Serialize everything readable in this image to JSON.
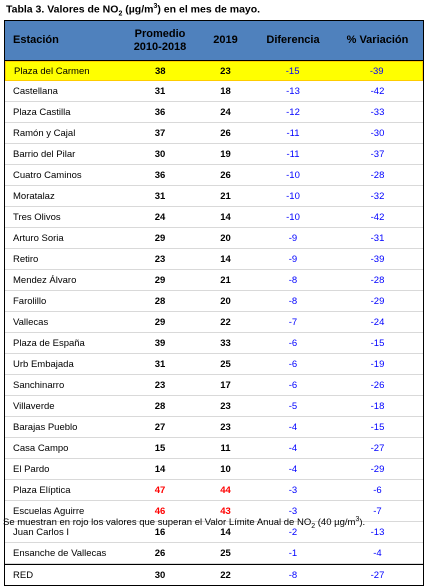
{
  "title": {
    "pre": "Tabla 3. Valores de NO",
    "sub": "2",
    "mid": " (µg/m",
    "sup": "3",
    "post": ") en el mes de mayo."
  },
  "headers": {
    "station": "Estación",
    "avg_line1": "Promedio",
    "avg_line2": "2010-2018",
    "year": "2019",
    "diff": "Diferencia",
    "var": "% Variación"
  },
  "colors": {
    "header_bg": "#4f81bd",
    "highlight": "#ffff00",
    "exceed": "#ff0000",
    "diff_text": "#0000ff"
  },
  "rows": [
    {
      "station": "Plaza del Carmen",
      "avg": "38",
      "y2019": "23",
      "diff": "-15",
      "var": "-39",
      "highlight": true
    },
    {
      "station": "Castellana",
      "avg": "31",
      "y2019": "18",
      "diff": "-13",
      "var": "-42"
    },
    {
      "station": "Plaza Castilla",
      "avg": "36",
      "y2019": "24",
      "diff": "-12",
      "var": "-33"
    },
    {
      "station": "Ramón y Cajal",
      "avg": "37",
      "y2019": "26",
      "diff": "-11",
      "var": "-30"
    },
    {
      "station": "Barrio del Pilar",
      "avg": "30",
      "y2019": "19",
      "diff": "-11",
      "var": "-37"
    },
    {
      "station": "Cuatro Caminos",
      "avg": "36",
      "y2019": "26",
      "diff": "-10",
      "var": "-28"
    },
    {
      "station": "Moratalaz",
      "avg": "31",
      "y2019": "21",
      "diff": "-10",
      "var": "-32"
    },
    {
      "station": "Tres Olivos",
      "avg": "24",
      "y2019": "14",
      "diff": "-10",
      "var": "-42"
    },
    {
      "station": "Arturo Soria",
      "avg": "29",
      "y2019": "20",
      "diff": "-9",
      "var": "-31"
    },
    {
      "station": "Retiro",
      "avg": "23",
      "y2019": "14",
      "diff": "-9",
      "var": "-39"
    },
    {
      "station": "Mendez Álvaro",
      "avg": "29",
      "y2019": "21",
      "diff": "-8",
      "var": "-28"
    },
    {
      "station": "Farolillo",
      "avg": "28",
      "y2019": "20",
      "diff": "-8",
      "var": "-29"
    },
    {
      "station": "Vallecas",
      "avg": "29",
      "y2019": "22",
      "diff": "-7",
      "var": "-24"
    },
    {
      "station": "Plaza de España",
      "avg": "39",
      "y2019": "33",
      "diff": "-6",
      "var": "-15"
    },
    {
      "station": "Urb Embajada",
      "avg": "31",
      "y2019": "25",
      "diff": "-6",
      "var": "-19"
    },
    {
      "station": "Sanchinarro",
      "avg": "23",
      "y2019": "17",
      "diff": "-6",
      "var": "-26"
    },
    {
      "station": "Villaverde",
      "avg": "28",
      "y2019": "23",
      "diff": "-5",
      "var": "-18"
    },
    {
      "station": "Barajas Pueblo",
      "avg": "27",
      "y2019": "23",
      "diff": "-4",
      "var": "-15"
    },
    {
      "station": "Casa Campo",
      "avg": "15",
      "y2019": "11",
      "diff": "-4",
      "var": "-27"
    },
    {
      "station": "El Pardo",
      "avg": "14",
      "y2019": "10",
      "diff": "-4",
      "var": "-29"
    },
    {
      "station": "Plaza Elíptica",
      "avg": "47",
      "y2019": "44",
      "diff": "-3",
      "var": "-6",
      "exceed": true
    },
    {
      "station": "Escuelas Aguirre",
      "avg": "46",
      "y2019": "43",
      "diff": "-3",
      "var": "-7",
      "exceed": true
    },
    {
      "station": "Juan Carlos I",
      "avg": "16",
      "y2019": "14",
      "diff": "-2",
      "var": "-13"
    },
    {
      "station": "Ensanche de Vallecas",
      "avg": "26",
      "y2019": "25",
      "diff": "-1",
      "var": "-4"
    }
  ],
  "total": {
    "station": "RED",
    "avg": "30",
    "y2019": "22",
    "diff": "-8",
    "var": "-27"
  },
  "footnote": {
    "pre": "Se muestran en rojo los valores que superan el Valor Límite Anual de NO",
    "sub": "2",
    "mid": " (40 µg/m",
    "sup": "3",
    "post": ")."
  }
}
